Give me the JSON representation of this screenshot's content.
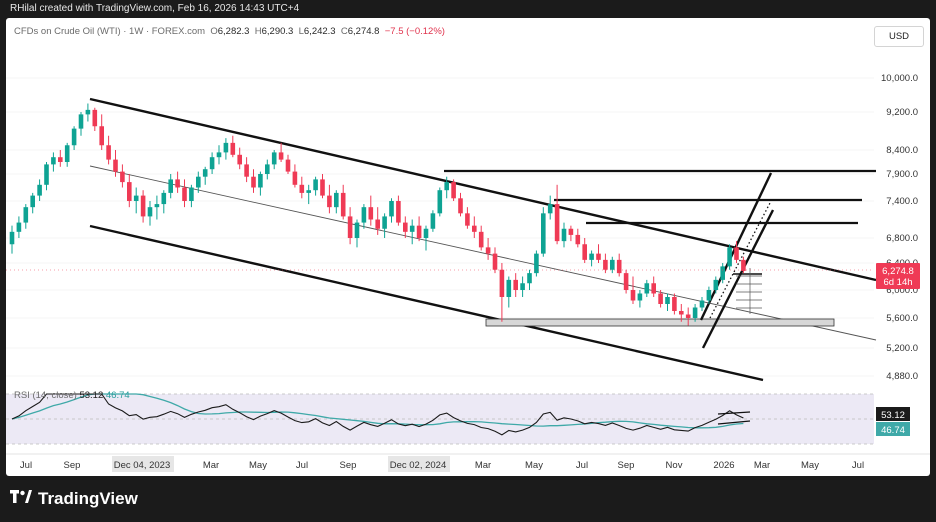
{
  "attribution": "RHilal created with TradingView.com, Feb 16, 2026 14:43 UTC+4",
  "symbol_info": {
    "name": "CFDs on Crude Oil (WTI) · 1W · FOREX.com",
    "open_label": "O",
    "open": "6,282.3",
    "high_label": "H",
    "high": "6,290.3",
    "low_label": "L",
    "low": "6,242.3",
    "close_label": "C",
    "close": "6,274.8",
    "change": "−7.5 (−0.12%)"
  },
  "currency_button": "USD",
  "brand": "TradingView",
  "colors": {
    "up": "#0ea393",
    "down": "#ef3a55",
    "rsi_line": "#1b1b1b",
    "rsi_ma": "#3fa9a8",
    "price_tag": "#ef3a55"
  },
  "chart_data": {
    "type": "candlestick",
    "interval": "1W",
    "price_axis_ticks": [
      "10,000.0",
      "9,200.0",
      "8,400.0",
      "7,900.0",
      "7,400.0",
      "6,800.0",
      "6,400.0",
      "6,000.0",
      "5,600.0",
      "5,200.0",
      "4,880.0"
    ],
    "time_axis_ticks": [
      "Jul",
      "Sep",
      "Dec 04, 2023",
      "Mar",
      "May",
      "Jul",
      "Sep",
      "Dec 02, 2024",
      "Mar",
      "May",
      "Jul",
      "Sep",
      "Nov",
      "2026",
      "Mar",
      "May",
      "Jul"
    ],
    "last_price": "6,274.8",
    "countdown": "6d 14h",
    "candles": [
      [
        6700,
        7000,
        6550,
        6900
      ],
      [
        6900,
        7150,
        6800,
        7050
      ],
      [
        7050,
        7350,
        6950,
        7300
      ],
      [
        7300,
        7550,
        7200,
        7500
      ],
      [
        7500,
        7800,
        7400,
        7700
      ],
      [
        7700,
        8150,
        7600,
        8100
      ],
      [
        8100,
        8350,
        7950,
        8250
      ],
      [
        8250,
        8400,
        8050,
        8150
      ],
      [
        8150,
        8550,
        8050,
        8500
      ],
      [
        8500,
        8900,
        8400,
        8850
      ],
      [
        8850,
        9200,
        8700,
        9150
      ],
      [
        9150,
        9400,
        9000,
        9250
      ],
      [
        9250,
        9300,
        8800,
        8900
      ],
      [
        8900,
        9150,
        8400,
        8500
      ],
      [
        8500,
        8700,
        8100,
        8200
      ],
      [
        8200,
        8400,
        7850,
        7950
      ],
      [
        7950,
        8100,
        7650,
        7750
      ],
      [
        7750,
        7900,
        7300,
        7400
      ],
      [
        7400,
        7650,
        7200,
        7500
      ],
      [
        7500,
        7600,
        7050,
        7150
      ],
      [
        7150,
        7400,
        7000,
        7300
      ],
      [
        7300,
        7500,
        7100,
        7350
      ],
      [
        7350,
        7600,
        7200,
        7550
      ],
      [
        7550,
        7900,
        7450,
        7800
      ],
      [
        7800,
        7950,
        7550,
        7650
      ],
      [
        7650,
        7800,
        7300,
        7400
      ],
      [
        7400,
        7700,
        7300,
        7650
      ],
      [
        7650,
        7950,
        7550,
        7850
      ],
      [
        7850,
        8050,
        7700,
        8000
      ],
      [
        8000,
        8350,
        7900,
        8250
      ],
      [
        8250,
        8500,
        8100,
        8350
      ],
      [
        8350,
        8650,
        8200,
        8550
      ],
      [
        8550,
        8700,
        8250,
        8300
      ],
      [
        8300,
        8450,
        8000,
        8100
      ],
      [
        8100,
        8250,
        7750,
        7850
      ],
      [
        7850,
        8000,
        7550,
        7650
      ],
      [
        7650,
        7950,
        7500,
        7900
      ],
      [
        7900,
        8200,
        7800,
        8100
      ],
      [
        8100,
        8400,
        8000,
        8350
      ],
      [
        8350,
        8550,
        8150,
        8200
      ],
      [
        8200,
        8300,
        7900,
        7950
      ],
      [
        7950,
        8100,
        7650,
        7700
      ],
      [
        7700,
        7850,
        7450,
        7550
      ],
      [
        7550,
        7700,
        7350,
        7600
      ],
      [
        7600,
        7850,
        7500,
        7800
      ],
      [
        7800,
        7900,
        7450,
        7500
      ],
      [
        7500,
        7700,
        7200,
        7300
      ],
      [
        7300,
        7600,
        7200,
        7550
      ],
      [
        7550,
        7700,
        7100,
        7150
      ],
      [
        7150,
        7300,
        6700,
        6800
      ],
      [
        6800,
        7100,
        6650,
        7050
      ],
      [
        7050,
        7350,
        6950,
        7300
      ],
      [
        7300,
        7500,
        7000,
        7100
      ],
      [
        7100,
        7300,
        6850,
        6950
      ],
      [
        6950,
        7200,
        6800,
        7150
      ],
      [
        7150,
        7450,
        7050,
        7400
      ],
      [
        7400,
        7500,
        7000,
        7050
      ],
      [
        7050,
        7150,
        6800,
        6900
      ],
      [
        6900,
        7100,
        6700,
        7000
      ],
      [
        7000,
        7150,
        6750,
        6800
      ],
      [
        6800,
        7000,
        6600,
        6950
      ],
      [
        6950,
        7250,
        6900,
        7200
      ],
      [
        7200,
        7650,
        7150,
        7600
      ],
      [
        7600,
        7850,
        7450,
        7750
      ],
      [
        7750,
        7800,
        7400,
        7450
      ],
      [
        7450,
        7550,
        7150,
        7200
      ],
      [
        7200,
        7300,
        6950,
        7000
      ],
      [
        7000,
        7150,
        6800,
        6900
      ],
      [
        6900,
        7000,
        6600,
        6650
      ],
      [
        6650,
        6800,
        6450,
        6550
      ],
      [
        6550,
        6650,
        6250,
        6300
      ],
      [
        6300,
        6400,
        5550,
        5900
      ],
      [
        5900,
        6200,
        5750,
        6150
      ],
      [
        6150,
        6250,
        5900,
        6000
      ],
      [
        6000,
        6200,
        5900,
        6100
      ],
      [
        6100,
        6300,
        6000,
        6250
      ],
      [
        6250,
        6600,
        6200,
        6550
      ],
      [
        6550,
        7300,
        6500,
        7200
      ],
      [
        7200,
        7500,
        7100,
        7350
      ],
      [
        7350,
        7700,
        6700,
        6750
      ],
      [
        6750,
        7050,
        6650,
        6950
      ],
      [
        6950,
        7000,
        6750,
        6850
      ],
      [
        6850,
        6950,
        6650,
        6700
      ],
      [
        6700,
        6800,
        6400,
        6450
      ],
      [
        6450,
        6600,
        6350,
        6550
      ],
      [
        6550,
        6700,
        6400,
        6450
      ],
      [
        6450,
        6550,
        6250,
        6300
      ],
      [
        6300,
        6500,
        6250,
        6450
      ],
      [
        6450,
        6550,
        6200,
        6250
      ],
      [
        6250,
        6300,
        5950,
        6000
      ],
      [
        6000,
        6200,
        5800,
        5850
      ],
      [
        5850,
        6000,
        5750,
        5950
      ],
      [
        5950,
        6150,
        5900,
        6100
      ],
      [
        6100,
        6200,
        5900,
        5950
      ],
      [
        5950,
        6000,
        5750,
        5800
      ],
      [
        5800,
        5950,
        5700,
        5900
      ],
      [
        5900,
        5950,
        5650,
        5700
      ],
      [
        5700,
        5800,
        5550,
        5650
      ],
      [
        5650,
        5750,
        5500,
        5600
      ],
      [
        5600,
        5800,
        5550,
        5750
      ],
      [
        5750,
        5900,
        5700,
        5850
      ],
      [
        5850,
        6050,
        5800,
        6000
      ],
      [
        6000,
        6200,
        5950,
        6150
      ],
      [
        6150,
        6400,
        6100,
        6350
      ],
      [
        6350,
        6700,
        6300,
        6650
      ],
      [
        6650,
        6750,
        6400,
        6450
      ],
      [
        6450,
        6500,
        6250,
        6282.3
      ]
    ],
    "rsi": {
      "label": "RSI (14, close)",
      "rsi_value": "53.12",
      "ma_value": "46.74",
      "ylim": [
        20,
        80
      ]
    }
  }
}
